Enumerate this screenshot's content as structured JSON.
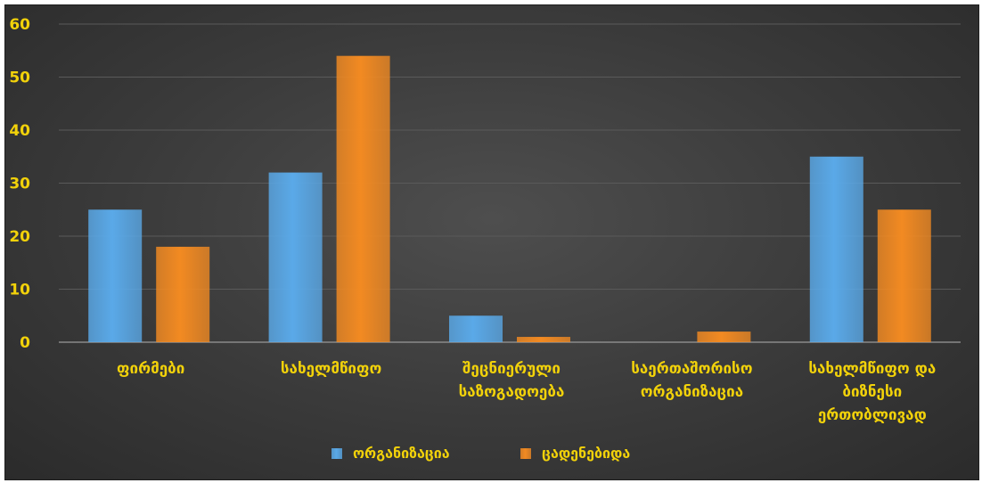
{
  "colors": {
    "series_1": "#5aa9e8",
    "series_2": "#f28a22",
    "text": "#f2d20a",
    "grid": "#5a5a5a",
    "background": "#3c3c3c"
  },
  "chart_data": {
    "type": "bar",
    "title": "",
    "xlabel": "",
    "ylabel": "",
    "ylim": [
      0,
      60
    ],
    "yticks": [
      "0",
      "10",
      "20",
      "30",
      "40",
      "50",
      "60"
    ],
    "grid": true,
    "legend_position": "bottom",
    "categories": [
      [
        "ფირმები"
      ],
      [
        "სახელმწიფო"
      ],
      [
        "შეცნიერული",
        "საზოგადოება"
      ],
      [
        "საერთაშორისო",
        "ორგანიზაცია"
      ],
      [
        "სახელმწიფო და",
        "ბიზნესი",
        "ერთობლივად"
      ]
    ],
    "series": [
      {
        "name": "ორგანიზაცია",
        "color": "#5aa9e8",
        "values": [
          25,
          32,
          5,
          0,
          35
        ]
      },
      {
        "name": "ცადენებიდა",
        "color": "#f28a22",
        "values": [
          18,
          54,
          1,
          2,
          25
        ]
      }
    ]
  }
}
